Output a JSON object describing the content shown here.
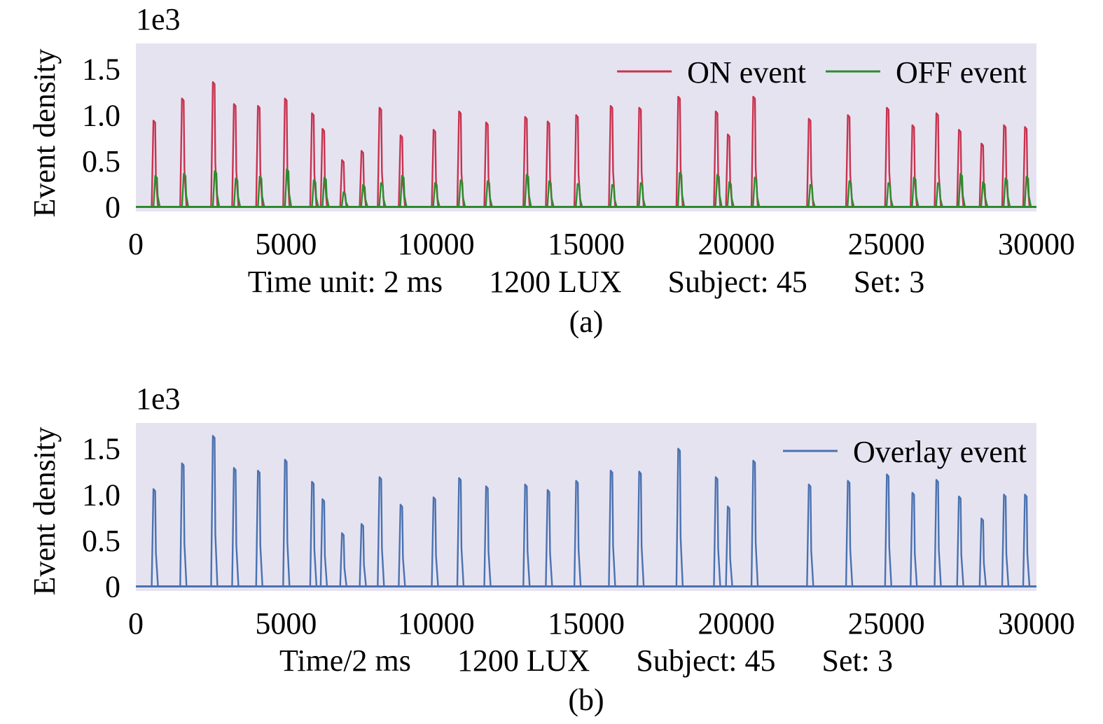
{
  "chart_data": [
    {
      "type": "line",
      "panel_label": "(a)",
      "multiplier": "1e3",
      "ylabel": "Event density",
      "xlabel": "Time unit: 2 ms      1200 LUX      Subject: 45      Set: 3",
      "xlim": [
        0,
        30000
      ],
      "ylim": [
        -0.05,
        1.78
      ],
      "xticks": [
        "0",
        "5000",
        "10000",
        "15000",
        "20000",
        "25000",
        "30000"
      ],
      "yticks": [
        "0",
        "0.5",
        "1.0",
        "1.5"
      ],
      "legend_position": "top-right",
      "background": "#e6e3f1",
      "series": [
        {
          "name": "ON event",
          "color": "#c8334f",
          "spikes": [
            {
              "x": 620,
              "v": 0.94
            },
            {
              "x": 1570,
              "v": 1.18
            },
            {
              "x": 2600,
              "v": 1.36
            },
            {
              "x": 3300,
              "v": 1.12
            },
            {
              "x": 4100,
              "v": 1.1
            },
            {
              "x": 5000,
              "v": 1.18
            },
            {
              "x": 5900,
              "v": 1.02
            },
            {
              "x": 6250,
              "v": 0.85
            },
            {
              "x": 6900,
              "v": 0.51
            },
            {
              "x": 7550,
              "v": 0.61
            },
            {
              "x": 8150,
              "v": 1.08
            },
            {
              "x": 8850,
              "v": 0.78
            },
            {
              "x": 9950,
              "v": 0.84
            },
            {
              "x": 10800,
              "v": 1.04
            },
            {
              "x": 11700,
              "v": 0.92
            },
            {
              "x": 13000,
              "v": 0.98
            },
            {
              "x": 13750,
              "v": 0.93
            },
            {
              "x": 14700,
              "v": 1.0
            },
            {
              "x": 15850,
              "v": 1.1
            },
            {
              "x": 16800,
              "v": 1.08
            },
            {
              "x": 18100,
              "v": 1.2
            },
            {
              "x": 19350,
              "v": 1.04
            },
            {
              "x": 19750,
              "v": 0.79
            },
            {
              "x": 20600,
              "v": 1.2
            },
            {
              "x": 22450,
              "v": 0.96
            },
            {
              "x": 23750,
              "v": 1.0
            },
            {
              "x": 25050,
              "v": 1.08
            },
            {
              "x": 25900,
              "v": 0.89
            },
            {
              "x": 26700,
              "v": 1.02
            },
            {
              "x": 27450,
              "v": 0.84
            },
            {
              "x": 28200,
              "v": 0.69
            },
            {
              "x": 28950,
              "v": 0.89
            },
            {
              "x": 29650,
              "v": 0.87
            }
          ]
        },
        {
          "name": "OFF event",
          "color": "#2e8b2e",
          "spikes": [
            {
              "x": 680,
              "v": 0.34
            },
            {
              "x": 1630,
              "v": 0.36
            },
            {
              "x": 2660,
              "v": 0.39
            },
            {
              "x": 3360,
              "v": 0.31
            },
            {
              "x": 4160,
              "v": 0.33
            },
            {
              "x": 5060,
              "v": 0.41
            },
            {
              "x": 5960,
              "v": 0.29
            },
            {
              "x": 6310,
              "v": 0.32
            },
            {
              "x": 6950,
              "v": 0.16
            },
            {
              "x": 7600,
              "v": 0.24
            },
            {
              "x": 8200,
              "v": 0.26
            },
            {
              "x": 8900,
              "v": 0.34
            },
            {
              "x": 10000,
              "v": 0.26
            },
            {
              "x": 10850,
              "v": 0.29
            },
            {
              "x": 11750,
              "v": 0.28
            },
            {
              "x": 13050,
              "v": 0.35
            },
            {
              "x": 13800,
              "v": 0.28
            },
            {
              "x": 14750,
              "v": 0.25
            },
            {
              "x": 15900,
              "v": 0.24
            },
            {
              "x": 16850,
              "v": 0.26
            },
            {
              "x": 18150,
              "v": 0.37
            },
            {
              "x": 19400,
              "v": 0.35
            },
            {
              "x": 19800,
              "v": 0.27
            },
            {
              "x": 20650,
              "v": 0.32
            },
            {
              "x": 22500,
              "v": 0.24
            },
            {
              "x": 23800,
              "v": 0.28
            },
            {
              "x": 25100,
              "v": 0.26
            },
            {
              "x": 25950,
              "v": 0.32
            },
            {
              "x": 26750,
              "v": 0.26
            },
            {
              "x": 27500,
              "v": 0.36
            },
            {
              "x": 28250,
              "v": 0.27
            },
            {
              "x": 29000,
              "v": 0.31
            },
            {
              "x": 29700,
              "v": 0.33
            }
          ]
        }
      ]
    },
    {
      "type": "line",
      "panel_label": "(b)",
      "multiplier": "1e3",
      "ylabel": "Event density",
      "xlabel": "Time/2 ms      1200 LUX      Subject: 45      Set: 3",
      "xlim": [
        0,
        30000
      ],
      "ylim": [
        -0.05,
        1.78
      ],
      "xticks": [
        "0",
        "5000",
        "10000",
        "15000",
        "20000",
        "25000",
        "30000"
      ],
      "yticks": [
        "0",
        "0.5",
        "1.0",
        "1.5"
      ],
      "legend_position": "top-right",
      "background": "#e6e3f1",
      "series": [
        {
          "name": "Overlay event",
          "color": "#4a72b0",
          "spikes": [
            {
              "x": 620,
              "v": 1.06
            },
            {
              "x": 1570,
              "v": 1.34
            },
            {
              "x": 2600,
              "v": 1.64
            },
            {
              "x": 3300,
              "v": 1.29
            },
            {
              "x": 4100,
              "v": 1.26
            },
            {
              "x": 5000,
              "v": 1.38
            },
            {
              "x": 5900,
              "v": 1.14
            },
            {
              "x": 6250,
              "v": 0.95
            },
            {
              "x": 6900,
              "v": 0.58
            },
            {
              "x": 7550,
              "v": 0.68
            },
            {
              "x": 8150,
              "v": 1.19
            },
            {
              "x": 8850,
              "v": 0.89
            },
            {
              "x": 9950,
              "v": 0.97
            },
            {
              "x": 10800,
              "v": 1.18
            },
            {
              "x": 11700,
              "v": 1.09
            },
            {
              "x": 13000,
              "v": 1.11
            },
            {
              "x": 13750,
              "v": 1.05
            },
            {
              "x": 14700,
              "v": 1.15
            },
            {
              "x": 15850,
              "v": 1.26
            },
            {
              "x": 16800,
              "v": 1.25
            },
            {
              "x": 18100,
              "v": 1.5
            },
            {
              "x": 19350,
              "v": 1.19
            },
            {
              "x": 19750,
              "v": 0.87
            },
            {
              "x": 20600,
              "v": 1.37
            },
            {
              "x": 22450,
              "v": 1.11
            },
            {
              "x": 23750,
              "v": 1.15
            },
            {
              "x": 25050,
              "v": 1.22
            },
            {
              "x": 25900,
              "v": 1.02
            },
            {
              "x": 26700,
              "v": 1.16
            },
            {
              "x": 27450,
              "v": 0.98
            },
            {
              "x": 28200,
              "v": 0.74
            },
            {
              "x": 28950,
              "v": 1.0
            },
            {
              "x": 29650,
              "v": 1.0
            }
          ]
        }
      ]
    }
  ]
}
